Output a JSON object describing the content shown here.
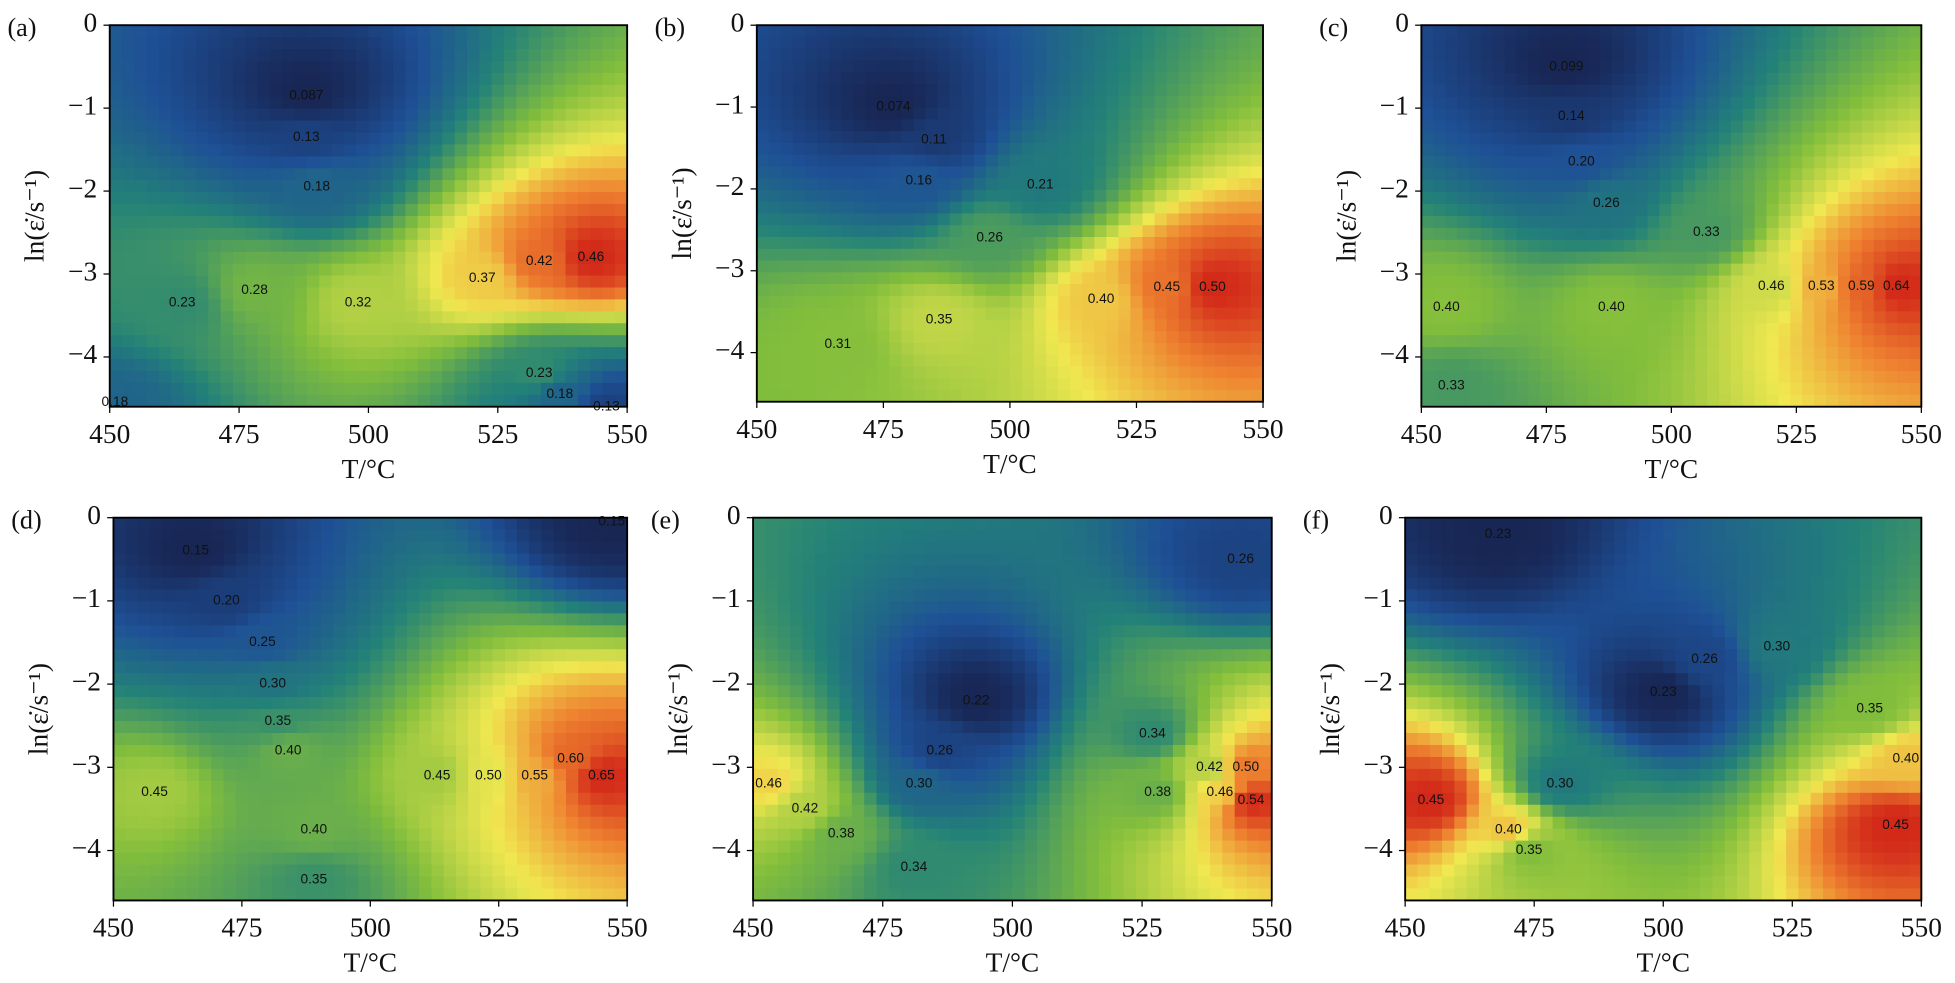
{
  "chart_data": [
    {
      "type": "contour",
      "panel_label": "(a)",
      "xlabel": "T/°C",
      "ylabel": "ln(ε̇/s⁻¹)",
      "xlim": [
        450,
        550
      ],
      "ylim": [
        -4.6,
        0
      ],
      "xticks": [
        450,
        475,
        500,
        525,
        550
      ],
      "yticks": [
        0,
        {
          "value": -1,
          "label": "−1"
        },
        {
          "value": -2,
          "label": "−2"
        },
        {
          "value": -3,
          "label": "−3"
        },
        {
          "value": -4,
          "label": "−4"
        }
      ],
      "x": [
        488,
        488,
        490,
        464,
        478,
        498,
        522,
        533,
        543,
        533,
        537,
        546,
        451
      ],
      "y": [
        -0.85,
        -1.35,
        -1.95,
        -3.35,
        -3.2,
        -3.35,
        -3.05,
        -2.85,
        -2.8,
        -4.2,
        -4.45,
        -4.6,
        -4.55
      ],
      "values": [
        0.087,
        0.13,
        0.18,
        0.23,
        0.28,
        0.32,
        0.37,
        0.42,
        0.46,
        0.23,
        0.18,
        0.13,
        0.18
      ],
      "value_labels": [
        "0.087",
        "0.13",
        "0.18",
        "0.23",
        "0.28",
        "0.32",
        "0.37",
        "0.42",
        "0.46",
        "0.23",
        "0.18",
        "0.13",
        "0.18"
      ]
    },
    {
      "type": "contour",
      "panel_label": "(b)",
      "xlabel": "T/°C",
      "ylabel": "ln(ε̇/s⁻¹)",
      "xlim": [
        450,
        550
      ],
      "ylim": [
        -4.6,
        0
      ],
      "xticks": [
        450,
        475,
        500,
        525,
        550
      ],
      "yticks": [
        0,
        {
          "value": -1,
          "label": "−1"
        },
        {
          "value": -2,
          "label": "−2"
        },
        {
          "value": -3,
          "label": "−3"
        },
        {
          "value": -4,
          "label": "−4"
        }
      ],
      "x": [
        477,
        485,
        482,
        506,
        496,
        466,
        486,
        518,
        531,
        540
      ],
      "y": [
        -1.0,
        -1.4,
        -1.9,
        -1.95,
        -2.6,
        -3.9,
        -3.6,
        -3.35,
        -3.2,
        -3.2
      ],
      "values": [
        0.074,
        0.11,
        0.16,
        0.21,
        0.26,
        0.31,
        0.35,
        0.4,
        0.45,
        0.5
      ],
      "value_labels": [
        "0.074",
        "0.11",
        "0.16",
        "0.21",
        "0.26",
        "0.31",
        "0.35",
        "0.40",
        "0.45",
        "0.50"
      ]
    },
    {
      "type": "contour",
      "panel_label": "(c)",
      "xlabel": "T/°C",
      "ylabel": "ln(ε̇/s⁻¹)",
      "xlim": [
        450,
        550
      ],
      "ylim": [
        -4.6,
        0
      ],
      "xticks": [
        450,
        475,
        500,
        525,
        550
      ],
      "yticks": [
        0,
        {
          "value": -1,
          "label": "−1"
        },
        {
          "value": -2,
          "label": "−2"
        },
        {
          "value": -3,
          "label": "−3"
        },
        {
          "value": -4,
          "label": "−4"
        }
      ],
      "x": [
        479,
        480,
        482,
        487,
        507,
        455,
        488,
        520,
        530,
        538,
        545,
        456
      ],
      "y": [
        -0.5,
        -1.1,
        -1.65,
        -2.15,
        -2.5,
        -3.4,
        -3.4,
        -3.15,
        -3.15,
        -3.15,
        -3.15,
        -4.35
      ],
      "values": [
        0.099,
        0.14,
        0.2,
        0.26,
        0.33,
        0.4,
        0.4,
        0.46,
        0.53,
        0.59,
        0.64,
        0.33
      ],
      "value_labels": [
        "0.099",
        "0.14",
        "0.20",
        "0.26",
        "0.33",
        "0.40",
        "0.40",
        "0.46",
        "0.53",
        "0.59",
        "0.64",
        "0.33"
      ]
    },
    {
      "type": "contour",
      "panel_label": "(d)",
      "xlabel": "T/°C",
      "ylabel": "ln(ε̇/s⁻¹)",
      "xlim": [
        450,
        550
      ],
      "ylim": [
        -4.6,
        0
      ],
      "xticks": [
        450,
        475,
        500,
        525,
        550
      ],
      "yticks": [
        0,
        {
          "value": -1,
          "label": "−1"
        },
        {
          "value": -2,
          "label": "−2"
        },
        {
          "value": -3,
          "label": "−3"
        },
        {
          "value": -4,
          "label": "−4"
        }
      ],
      "x": [
        466,
        547,
        472,
        479,
        481,
        482,
        484,
        513,
        523,
        532,
        539,
        545,
        458,
        489,
        489
      ],
      "y": [
        -0.4,
        -0.05,
        -1.0,
        -1.5,
        -2.0,
        -2.45,
        -2.8,
        -3.1,
        -3.1,
        -3.1,
        -2.9,
        -3.1,
        -3.3,
        -3.75,
        -4.35
      ],
      "values": [
        0.15,
        0.15,
        0.2,
        0.25,
        0.3,
        0.35,
        0.4,
        0.45,
        0.5,
        0.55,
        0.6,
        0.65,
        0.45,
        0.4,
        0.35
      ],
      "value_labels": [
        "0.15",
        "0.15",
        "0.20",
        "0.25",
        "0.30",
        "0.35",
        "0.40",
        "0.45",
        "0.50",
        "0.55",
        "0.60",
        "0.65",
        "0.45",
        "0.40",
        "0.35"
      ]
    },
    {
      "type": "contour",
      "panel_label": "(e)",
      "xlabel": "T/°C",
      "ylabel": "ln(ε̇/s⁻¹)",
      "xlim": [
        450,
        550
      ],
      "ylim": [
        -4.6,
        0
      ],
      "xticks": [
        450,
        475,
        500,
        525,
        550
      ],
      "yticks": [
        0,
        {
          "value": -1,
          "label": "−1"
        },
        {
          "value": -2,
          "label": "−2"
        },
        {
          "value": -3,
          "label": "−3"
        },
        {
          "value": -4,
          "label": "−4"
        }
      ],
      "x": [
        493,
        486,
        482,
        481,
        467,
        460,
        453,
        544,
        527,
        528,
        538,
        540,
        545,
        546
      ],
      "y": [
        -2.2,
        -2.8,
        -3.2,
        -4.2,
        -3.8,
        -3.5,
        -3.2,
        -0.5,
        -2.6,
        -3.3,
        -3.0,
        -3.3,
        -3.0,
        -3.4
      ],
      "values": [
        0.22,
        0.26,
        0.3,
        0.34,
        0.38,
        0.42,
        0.46,
        0.26,
        0.34,
        0.38,
        0.42,
        0.46,
        0.5,
        0.54
      ],
      "value_labels": [
        "0.22",
        "0.26",
        "0.30",
        "0.34",
        "0.38",
        "0.42",
        "0.46",
        "0.26",
        "0.34",
        "0.38",
        "0.42",
        "0.46",
        "0.50",
        "0.54"
      ]
    },
    {
      "type": "contour",
      "panel_label": "(f)",
      "xlabel": "T/°C",
      "ylabel": "ln(ε̇/s⁻¹)",
      "xlim": [
        450,
        550
      ],
      "ylim": [
        -4.6,
        0
      ],
      "xticks": [
        450,
        475,
        500,
        525,
        550
      ],
      "yticks": [
        0,
        {
          "value": -1,
          "label": "−1"
        },
        {
          "value": -2,
          "label": "−2"
        },
        {
          "value": -3,
          "label": "−3"
        },
        {
          "value": -4,
          "label": "−4"
        }
      ],
      "x": [
        468,
        508,
        522,
        500,
        540,
        547,
        455,
        470,
        474,
        480,
        545
      ],
      "y": [
        -0.2,
        -1.7,
        -1.55,
        -2.1,
        -2.3,
        -2.9,
        -3.4,
        -3.75,
        -4.0,
        -3.2,
        -3.7
      ],
      "values": [
        0.23,
        0.26,
        0.3,
        0.23,
        0.35,
        0.4,
        0.45,
        0.4,
        0.35,
        0.3,
        0.45
      ],
      "value_labels": [
        "0.23",
        "0.26",
        "0.30",
        "0.23",
        "0.35",
        "0.40",
        "0.45",
        "0.40",
        "0.35",
        "0.30",
        "0.45"
      ]
    }
  ]
}
